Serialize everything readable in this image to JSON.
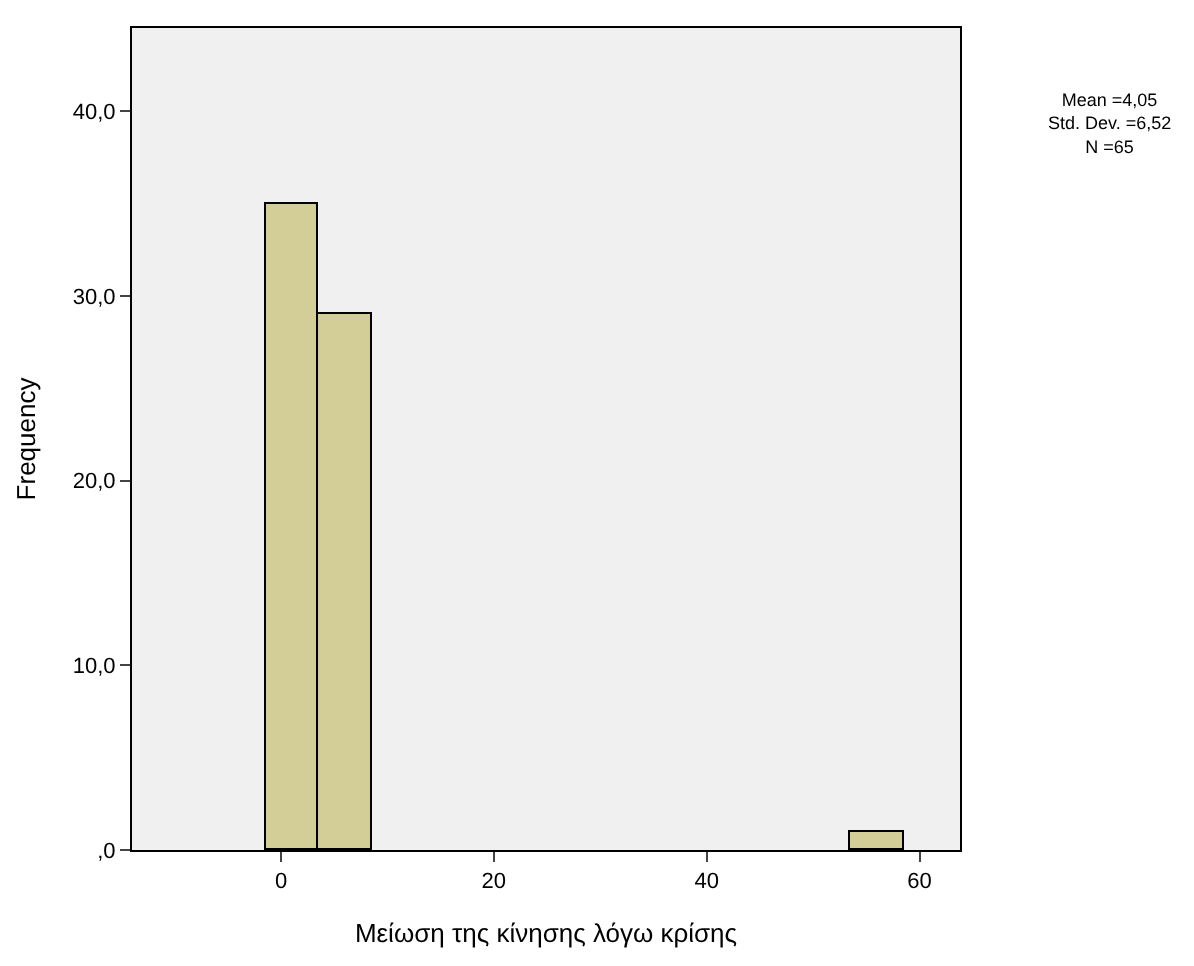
{
  "chart_data": {
    "type": "histogram",
    "xlabel": "Μείωση της κίνησης λόγω κρίσης",
    "ylabel": "Frequency",
    "bins": [
      -1.5,
      3.5,
      8.5,
      13.5,
      18.5,
      23.5,
      28.5,
      33.5,
      38.5,
      43.5,
      48.5,
      53.5,
      58.5
    ],
    "values": [
      35,
      29,
      0,
      0,
      0,
      0,
      0,
      0,
      0,
      0,
      0,
      1
    ],
    "color": "#d3ce97",
    "xlim": [
      -14,
      63.8
    ],
    "xticks": [
      0,
      20,
      40,
      60
    ],
    "ylim": [
      0,
      44.5
    ],
    "yticks": [
      {
        "value": 0,
        "label": ",0"
      },
      {
        "value": 10,
        "label": "10,0"
      },
      {
        "value": 20,
        "label": "20,0"
      },
      {
        "value": 30,
        "label": "30,0"
      },
      {
        "value": 40,
        "label": "40,0"
      }
    ],
    "annotations": [
      "Mean =4,05",
      "Std. Dev. =6,52",
      "N =65"
    ],
    "grid": false
  }
}
